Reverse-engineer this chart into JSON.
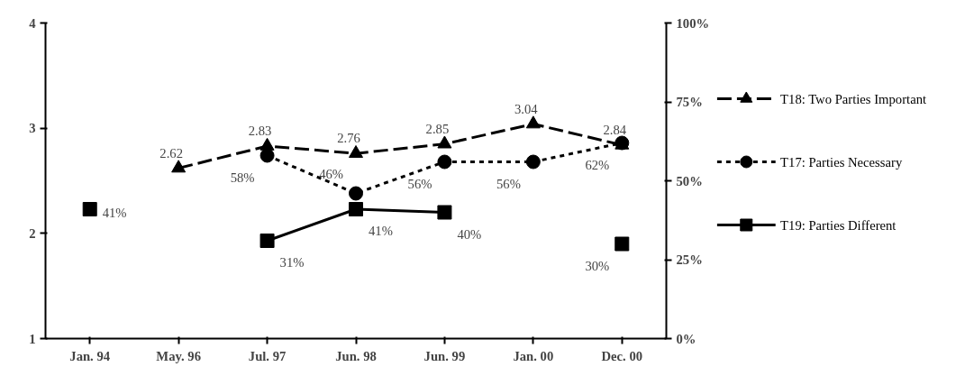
{
  "chart_data": {
    "type": "line",
    "categories": [
      "Jan. 94",
      "May. 96",
      "Jul. 97",
      "Jun. 98",
      "Jun. 99",
      "Jan. 00",
      "Dec. 00"
    ],
    "ylim": [
      1,
      4
    ],
    "yticks": [
      1,
      2,
      3,
      4
    ],
    "y2lim": [
      0,
      100
    ],
    "y2ticks": [
      {
        "value": 0,
        "label": "0%"
      },
      {
        "value": 25,
        "label": "25%"
      },
      {
        "value": 50,
        "label": "50%"
      },
      {
        "value": 75,
        "label": "75%"
      },
      {
        "value": 100,
        "label": "100%"
      }
    ],
    "grid": false,
    "legend": "right",
    "data_labels": true,
    "series": [
      {
        "name": "T18: Two Parties Important",
        "color": "#000000",
        "marker": "triangle",
        "line_style": "dashed",
        "values": [
          null,
          2.62,
          2.83,
          2.76,
          2.85,
          3.04,
          2.84
        ],
        "value_labels": [
          null,
          "2.62",
          "2.83",
          "2.76",
          "2.85",
          "3.04",
          "2.84"
        ]
      },
      {
        "name": "T17: Parties Necessary",
        "color": "#000000",
        "marker": "circle",
        "line_style": "dotted",
        "axis": "y2",
        "values": [
          null,
          null,
          58,
          46,
          56,
          56,
          62
        ],
        "value_labels": [
          null,
          null,
          "58%",
          "46%",
          "56%",
          "56%",
          "62%"
        ]
      },
      {
        "name": "T19: Parties Different",
        "color": "#000000",
        "marker": "square",
        "line_style": "solid",
        "axis": "y2",
        "values": [
          41,
          null,
          31,
          41,
          40,
          null,
          30
        ],
        "value_labels": [
          "41%",
          null,
          "31%",
          "41%",
          "40%",
          null,
          "30%"
        ]
      }
    ]
  }
}
